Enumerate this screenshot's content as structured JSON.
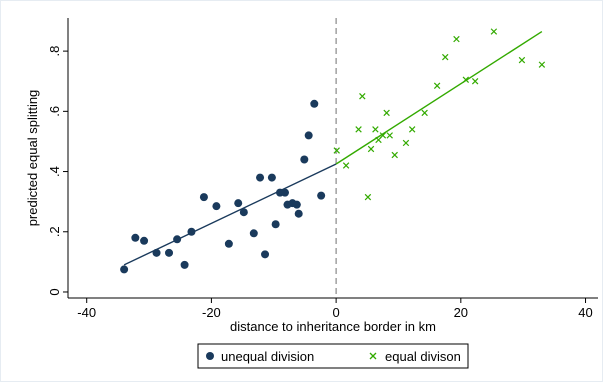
{
  "chart_data": {
    "type": "scatter",
    "title": "",
    "xlabel": "distance to inheritance border in km",
    "ylabel": "predicted equal splitting",
    "xlim": [
      -43,
      42
    ],
    "ylim": [
      -0.02,
      0.91
    ],
    "x_ticks": [
      -40,
      -20,
      0,
      20,
      40
    ],
    "x_tick_labels": [
      "-40",
      "-20",
      "0",
      "20",
      "40"
    ],
    "y_ticks": [
      0,
      0.2,
      0.4,
      0.6,
      0.8
    ],
    "y_tick_labels": [
      "0",
      ".2",
      ".4",
      ".6",
      ".8"
    ],
    "grid": false,
    "legend_position": "bottom",
    "border_line": {
      "x": 0,
      "style": "dashed",
      "color": "#888888"
    },
    "series": [
      {
        "name": "unequal division",
        "marker": "circle",
        "color": "#1a3a5c",
        "points": [
          [
            -34,
            0.075
          ],
          [
            -32.2,
            0.18
          ],
          [
            -30.8,
            0.17
          ],
          [
            -28.8,
            0.13
          ],
          [
            -26.8,
            0.13
          ],
          [
            -25.5,
            0.175
          ],
          [
            -24.3,
            0.09
          ],
          [
            -23.2,
            0.2
          ],
          [
            -21.2,
            0.315
          ],
          [
            -19.2,
            0.285
          ],
          [
            -17.2,
            0.16
          ],
          [
            -15.7,
            0.295
          ],
          [
            -14.8,
            0.265
          ],
          [
            -13.2,
            0.195
          ],
          [
            -12.2,
            0.38
          ],
          [
            -11.4,
            0.125
          ],
          [
            -10.3,
            0.38
          ],
          [
            -9.7,
            0.225
          ],
          [
            -9.0,
            0.33
          ],
          [
            -8.2,
            0.33
          ],
          [
            -7.8,
            0.29
          ],
          [
            -7.0,
            0.295
          ],
          [
            -6.3,
            0.29
          ],
          [
            -6.0,
            0.26
          ],
          [
            -5.1,
            0.44
          ],
          [
            -4.4,
            0.52
          ],
          [
            -3.5,
            0.625
          ],
          [
            -2.4,
            0.32
          ]
        ]
      },
      {
        "name": "equal divison",
        "marker": "x",
        "color": "#33aa00",
        "points": [
          [
            0.1,
            0.47
          ],
          [
            1.6,
            0.42
          ],
          [
            3.6,
            0.54
          ],
          [
            4.2,
            0.65
          ],
          [
            5.1,
            0.315
          ],
          [
            5.6,
            0.475
          ],
          [
            6.3,
            0.54
          ],
          [
            6.8,
            0.505
          ],
          [
            7.5,
            0.52
          ],
          [
            8.1,
            0.595
          ],
          [
            8.6,
            0.52
          ],
          [
            9.4,
            0.455
          ],
          [
            11.2,
            0.495
          ],
          [
            12.2,
            0.54
          ],
          [
            14.2,
            0.595
          ],
          [
            16.2,
            0.685
          ],
          [
            17.5,
            0.78
          ],
          [
            19.3,
            0.84
          ],
          [
            20.8,
            0.705
          ],
          [
            22.3,
            0.7
          ],
          [
            25.3,
            0.865
          ],
          [
            29.8,
            0.77
          ],
          [
            33,
            0.755
          ]
        ]
      }
    ],
    "fit_lines": [
      {
        "series": "unequal division",
        "color": "#1a3a5c",
        "x": [
          -34,
          0
        ],
        "y": [
          0.09,
          0.425
        ]
      },
      {
        "series": "equal divison",
        "color": "#33aa00",
        "x": [
          0,
          33
        ],
        "y": [
          0.425,
          0.865
        ]
      }
    ]
  }
}
